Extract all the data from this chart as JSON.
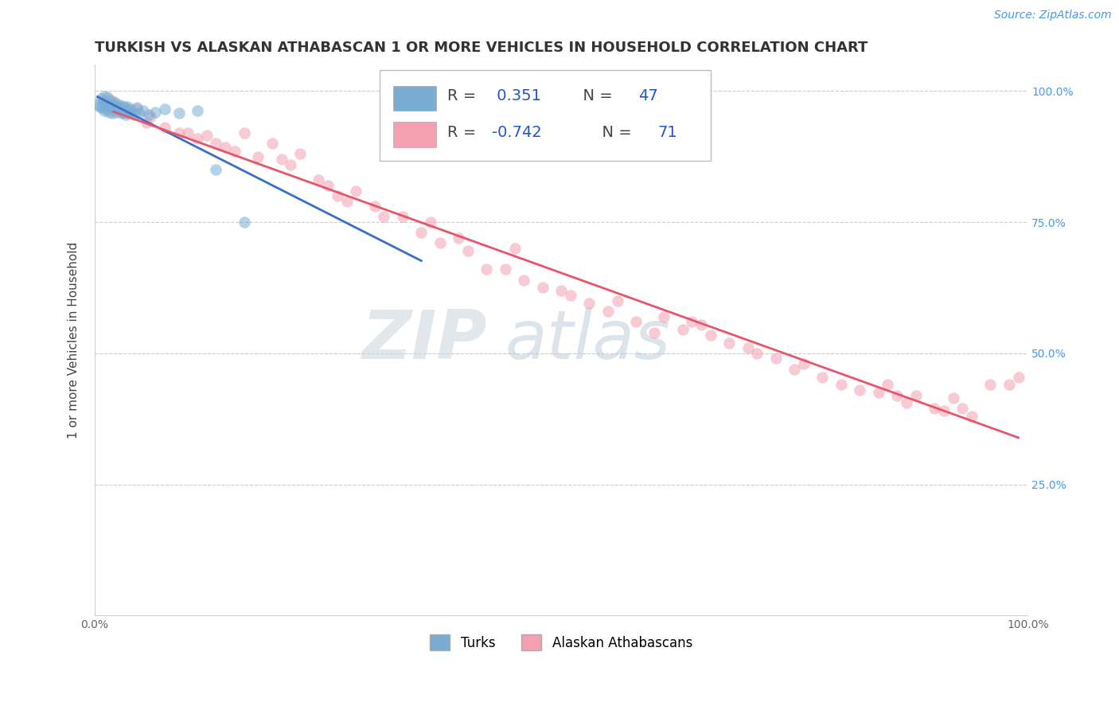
{
  "title": "TURKISH VS ALASKAN ATHABASCAN 1 OR MORE VEHICLES IN HOUSEHOLD CORRELATION CHART",
  "source": "Source: ZipAtlas.com",
  "ylabel": "1 or more Vehicles in Household",
  "y_tick_labels": [
    "100.0%",
    "75.0%",
    "50.0%",
    "25.0%"
  ],
  "y_tick_values": [
    1.0,
    0.75,
    0.5,
    0.25
  ],
  "turk_color": "#7aadd4",
  "athabascan_color": "#f4a0b0",
  "turk_line_color": "#3a6fc8",
  "athabascan_line_color": "#e8546a",
  "background_color": "#FFFFFF",
  "xlim": [
    0.0,
    1.0
  ],
  "ylim": [
    0.0,
    1.05
  ],
  "title_fontsize": 13,
  "axis_label_fontsize": 11,
  "tick_fontsize": 10,
  "legend_fontsize": 13,
  "source_fontsize": 10,
  "marker_size": 110,
  "marker_alpha": 0.55,
  "turks_x": [
    0.003,
    0.005,
    0.007,
    0.008,
    0.009,
    0.01,
    0.01,
    0.011,
    0.012,
    0.013,
    0.014,
    0.015,
    0.015,
    0.016,
    0.017,
    0.018,
    0.019,
    0.02,
    0.021,
    0.022,
    0.023,
    0.024,
    0.025,
    0.026,
    0.027,
    0.028,
    0.029,
    0.03,
    0.031,
    0.032,
    0.033,
    0.034,
    0.035,
    0.036,
    0.038,
    0.04,
    0.042,
    0.045,
    0.048,
    0.052,
    0.058,
    0.065,
    0.075,
    0.09,
    0.11,
    0.13,
    0.16
  ],
  "turks_y": [
    0.975,
    0.97,
    0.985,
    0.968,
    0.98,
    0.99,
    0.962,
    0.978,
    0.972,
    0.965,
    0.988,
    0.975,
    0.96,
    0.982,
    0.968,
    0.973,
    0.958,
    0.965,
    0.978,
    0.972,
    0.96,
    0.968,
    0.975,
    0.962,
    0.97,
    0.965,
    0.958,
    0.972,
    0.96,
    0.968,
    0.955,
    0.963,
    0.97,
    0.958,
    0.965,
    0.96,
    0.955,
    0.968,
    0.958,
    0.962,
    0.955,
    0.96,
    0.965,
    0.958,
    0.962,
    0.85,
    0.75
  ],
  "athabascan_x": [
    0.02,
    0.03,
    0.045,
    0.055,
    0.06,
    0.075,
    0.09,
    0.1,
    0.11,
    0.12,
    0.13,
    0.14,
    0.15,
    0.16,
    0.175,
    0.19,
    0.2,
    0.21,
    0.22,
    0.24,
    0.25,
    0.26,
    0.27,
    0.28,
    0.3,
    0.31,
    0.33,
    0.35,
    0.36,
    0.37,
    0.39,
    0.4,
    0.42,
    0.44,
    0.45,
    0.46,
    0.48,
    0.5,
    0.51,
    0.53,
    0.55,
    0.56,
    0.58,
    0.6,
    0.61,
    0.63,
    0.64,
    0.65,
    0.66,
    0.68,
    0.7,
    0.71,
    0.73,
    0.75,
    0.76,
    0.78,
    0.8,
    0.82,
    0.84,
    0.85,
    0.86,
    0.87,
    0.88,
    0.9,
    0.91,
    0.92,
    0.93,
    0.94,
    0.96,
    0.98,
    0.99
  ],
  "athabascan_y": [
    0.98,
    0.96,
    0.965,
    0.94,
    0.95,
    0.93,
    0.92,
    0.92,
    0.91,
    0.915,
    0.9,
    0.892,
    0.885,
    0.92,
    0.875,
    0.9,
    0.87,
    0.86,
    0.88,
    0.83,
    0.82,
    0.8,
    0.79,
    0.81,
    0.78,
    0.76,
    0.76,
    0.73,
    0.75,
    0.71,
    0.72,
    0.695,
    0.66,
    0.66,
    0.7,
    0.64,
    0.625,
    0.62,
    0.61,
    0.595,
    0.58,
    0.6,
    0.56,
    0.54,
    0.57,
    0.545,
    0.56,
    0.555,
    0.535,
    0.52,
    0.51,
    0.5,
    0.49,
    0.47,
    0.48,
    0.455,
    0.44,
    0.43,
    0.425,
    0.44,
    0.42,
    0.405,
    0.42,
    0.395,
    0.39,
    0.415,
    0.395,
    0.38,
    0.44,
    0.44,
    0.455
  ]
}
